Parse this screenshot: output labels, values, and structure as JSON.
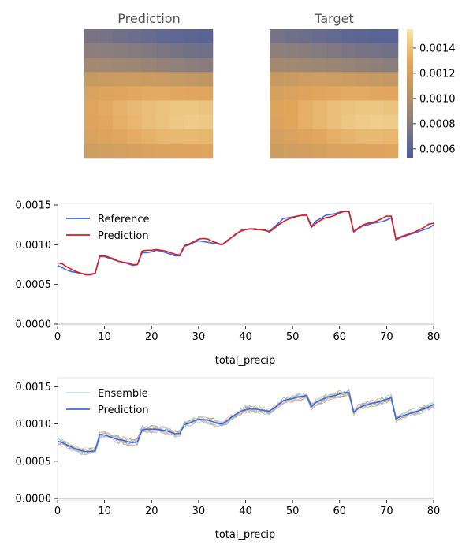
{
  "heatmaps": {
    "prediction_title": "Prediction",
    "target_title": "Target",
    "colorbar_ticks": [
      "0.0006",
      "0.0008",
      "0.0010",
      "0.0012",
      "0.0014"
    ],
    "colorbar_range": [
      0.00053,
      0.00155
    ],
    "colormap": [
      "#4a5b9c",
      "#857b80",
      "#b99466",
      "#e2a65c",
      "#f7e7aa"
    ]
  },
  "chart_data": [
    {
      "type": "heatmap",
      "title": "Prediction",
      "rows": 9,
      "cols": 9,
      "values": [
        [
          0.00073,
          0.00072,
          0.0007,
          0.00068,
          0.00066,
          0.00063,
          0.00062,
          0.00061,
          0.0006
        ],
        [
          0.00082,
          0.00081,
          0.0008,
          0.00078,
          0.00076,
          0.00074,
          0.00072,
          0.0007,
          0.00069
        ],
        [
          0.00093,
          0.00092,
          0.00091,
          0.0009,
          0.00088,
          0.00086,
          0.00084,
          0.00082,
          0.0008
        ],
        [
          0.00112,
          0.00114,
          0.00116,
          0.00116,
          0.00115,
          0.00114,
          0.00112,
          0.0011,
          0.00108
        ],
        [
          0.00124,
          0.00126,
          0.00128,
          0.0013,
          0.00131,
          0.00131,
          0.0013,
          0.00129,
          0.00128
        ],
        [
          0.00128,
          0.00131,
          0.00134,
          0.00137,
          0.00139,
          0.00141,
          0.00142,
          0.00142,
          0.00141
        ],
        [
          0.00127,
          0.0013,
          0.00133,
          0.00136,
          0.00139,
          0.00141,
          0.00143,
          0.00144,
          0.00143
        ],
        [
          0.00124,
          0.00127,
          0.0013,
          0.00132,
          0.00134,
          0.00136,
          0.00137,
          0.00137,
          0.00136
        ],
        [
          0.00117,
          0.00119,
          0.00121,
          0.00122,
          0.00124,
          0.00125,
          0.00126,
          0.00127,
          0.00128
        ]
      ]
    },
    {
      "type": "heatmap",
      "title": "Target",
      "rows": 9,
      "cols": 9,
      "values": [
        [
          0.00072,
          0.0007,
          0.00068,
          0.00066,
          0.00064,
          0.00062,
          0.00061,
          0.0006,
          0.0006
        ],
        [
          0.00083,
          0.00082,
          0.0008,
          0.00078,
          0.00076,
          0.00074,
          0.00072,
          0.00071,
          0.0007
        ],
        [
          0.00093,
          0.00092,
          0.00091,
          0.0009,
          0.00089,
          0.00087,
          0.00085,
          0.00083,
          0.00081
        ],
        [
          0.00113,
          0.00115,
          0.00117,
          0.00118,
          0.00117,
          0.00116,
          0.00114,
          0.00112,
          0.0011
        ],
        [
          0.00122,
          0.00124,
          0.00127,
          0.00129,
          0.0013,
          0.00131,
          0.00131,
          0.0013,
          0.00129
        ],
        [
          0.00126,
          0.00129,
          0.00133,
          0.00136,
          0.00139,
          0.00141,
          0.00142,
          0.00142,
          0.00141
        ],
        [
          0.00125,
          0.00129,
          0.00133,
          0.00136,
          0.00139,
          0.00142,
          0.00144,
          0.00145,
          0.00144
        ],
        [
          0.00121,
          0.00124,
          0.00127,
          0.0013,
          0.00133,
          0.00135,
          0.00137,
          0.00137,
          0.00136
        ],
        [
          0.00116,
          0.00118,
          0.0012,
          0.00122,
          0.00124,
          0.00125,
          0.00126,
          0.00127,
          0.00128
        ]
      ]
    },
    {
      "type": "line",
      "xlabel": "total_precip",
      "ylabel": "",
      "xlim": [
        0,
        80
      ],
      "ylim": [
        -2e-05,
        0.00152
      ],
      "xticks": [
        "0",
        "10",
        "20",
        "30",
        "40",
        "50",
        "60",
        "70",
        "80"
      ],
      "yticks": [
        "0.0000",
        "0.0005",
        "0.0010",
        "0.0015"
      ],
      "legend": "upper-left",
      "series": [
        {
          "name": "Reference",
          "color": "#4169e1",
          "values": [
            0.00074,
            0.00071,
            0.00068,
            0.00066,
            0.00065,
            0.00064,
            0.00063,
            0.00063,
            0.00064,
            0.00085,
            0.00085,
            0.00083,
            0.00081,
            0.00079,
            0.00078,
            0.00076,
            0.00074,
            0.00075,
            0.0009,
            0.0009,
            0.00091,
            0.00093,
            0.00092,
            0.0009,
            0.00088,
            0.00086,
            0.00086,
            0.00098,
            0.001,
            0.00103,
            0.00105,
            0.00104,
            0.00103,
            0.00102,
            0.00101,
            0.001,
            0.00105,
            0.00109,
            0.00113,
            0.00118,
            0.00119,
            0.0012,
            0.0012,
            0.00119,
            0.00118,
            0.00117,
            0.00122,
            0.00127,
            0.00133,
            0.00134,
            0.00135,
            0.00136,
            0.00137,
            0.00138,
            0.00123,
            0.0013,
            0.00133,
            0.00137,
            0.00138,
            0.00139,
            0.00141,
            0.00142,
            0.00142,
            0.00116,
            0.0012,
            0.00124,
            0.00125,
            0.00127,
            0.00128,
            0.00129,
            0.00131,
            0.00134,
            0.00106,
            0.00109,
            0.00111,
            0.00113,
            0.00115,
            0.00117,
            0.00119,
            0.00121,
            0.00125
          ]
        },
        {
          "name": "Prediction",
          "color": "#e31a1c",
          "values": [
            0.00077,
            0.00076,
            0.00072,
            0.00069,
            0.00066,
            0.00064,
            0.00062,
            0.00062,
            0.00064,
            0.00086,
            0.00086,
            0.00084,
            0.00082,
            0.00079,
            0.00078,
            0.00077,
            0.00075,
            0.00075,
            0.00092,
            0.00093,
            0.00093,
            0.00094,
            0.00093,
            0.00092,
            0.0009,
            0.00088,
            0.00087,
            0.00099,
            0.00101,
            0.00104,
            0.00107,
            0.00108,
            0.00107,
            0.00104,
            0.00102,
            0.001,
            0.00104,
            0.00109,
            0.00114,
            0.00117,
            0.00119,
            0.0012,
            0.00119,
            0.00119,
            0.00119,
            0.00116,
            0.0012,
            0.00125,
            0.00129,
            0.00132,
            0.00134,
            0.00136,
            0.00137,
            0.00137,
            0.00122,
            0.00127,
            0.00131,
            0.00134,
            0.00135,
            0.00137,
            0.0014,
            0.00142,
            0.00142,
            0.00117,
            0.00121,
            0.00125,
            0.00127,
            0.00128,
            0.0013,
            0.00133,
            0.00136,
            0.00136,
            0.00107,
            0.0011,
            0.00112,
            0.00114,
            0.00116,
            0.00119,
            0.00122,
            0.00126,
            0.00127
          ]
        }
      ]
    },
    {
      "type": "line",
      "xlabel": "total_precip",
      "ylabel": "",
      "xlim": [
        0,
        80
      ],
      "ylim": [
        -2e-05,
        0.00162
      ],
      "xticks": [
        "0",
        "10",
        "20",
        "30",
        "40",
        "50",
        "60",
        "70",
        "80"
      ],
      "yticks": [
        "0.0000",
        "0.0005",
        "0.0010",
        "0.0015"
      ],
      "legend": "upper-left",
      "ensemble_members": 10,
      "series": [
        {
          "name": "Ensemble",
          "color": "#7fb3d5"
        },
        {
          "name": "Prediction",
          "color": "#4169e1",
          "values": [
            0.00077,
            0.00075,
            0.00072,
            0.00069,
            0.00066,
            0.00064,
            0.00063,
            0.00063,
            0.00064,
            0.00086,
            0.00085,
            0.00083,
            0.00081,
            0.00079,
            0.00078,
            0.00076,
            0.00075,
            0.00076,
            0.00092,
            0.00093,
            0.00093,
            0.00093,
            0.00092,
            0.00091,
            0.00089,
            0.00087,
            0.00087,
            0.00099,
            0.00101,
            0.00104,
            0.00106,
            0.00106,
            0.00105,
            0.00103,
            0.00101,
            0.001,
            0.00104,
            0.00109,
            0.00113,
            0.00117,
            0.00119,
            0.0012,
            0.0012,
            0.00119,
            0.00118,
            0.00117,
            0.00121,
            0.00126,
            0.00131,
            0.00133,
            0.00134,
            0.00136,
            0.00137,
            0.00138,
            0.00123,
            0.00129,
            0.00132,
            0.00135,
            0.00137,
            0.00138,
            0.0014,
            0.00142,
            0.00142,
            0.00116,
            0.00121,
            0.00124,
            0.00126,
            0.00128,
            0.00129,
            0.00131,
            0.00133,
            0.00135,
            0.00107,
            0.0011,
            0.00112,
            0.00114,
            0.00116,
            0.00118,
            0.0012,
            0.00123,
            0.00126
          ]
        }
      ]
    }
  ]
}
